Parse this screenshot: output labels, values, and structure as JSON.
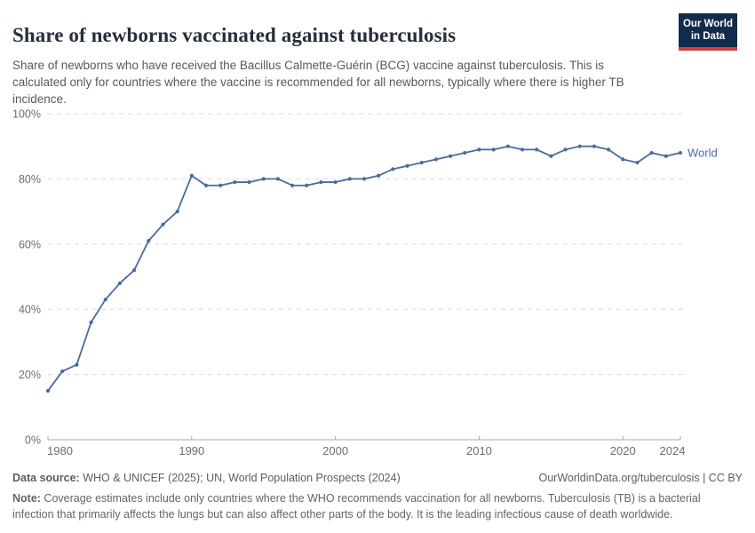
{
  "header": {
    "title": "Share of newborns vaccinated against tuberculosis",
    "subtitle": "Share of newborns who have received the Bacillus Calmette-Guérin (BCG) vaccine against tuberculosis. This is calculated only for countries where the vaccine is recommended for all newborns, typically where there is higher TB incidence."
  },
  "logo": {
    "line1": "Our World",
    "line2": "in Data"
  },
  "footer": {
    "source_label": "Data source:",
    "source_text": " WHO & UNICEF (2025); UN, World Population Prospects (2024)",
    "link_text": "OurWorldinData.org/tuberculosis | CC BY",
    "note_label": "Note:",
    "note_text": " Coverage estimates include only countries where the WHO recommends vaccination for all newborns. Tuberculosis (TB) is a bacterial infection that primarily affects the lungs but can also affect other parts of the body. It is the leading infectious cause of death worldwide."
  },
  "colors": {
    "line": "#4c6a9c",
    "grid": "#dcdcdc",
    "axis": "#a9a9a9",
    "tick_label": "#6e6e6e",
    "logo_bg": "#132b4d",
    "logo_stripe": "#d13c3c"
  },
  "chart_data": {
    "type": "line",
    "title": "Share of newborns vaccinated against tuberculosis",
    "xlabel": "",
    "ylabel": "",
    "xlim": [
      1980,
      2024
    ],
    "ylim": [
      0,
      100
    ],
    "grid": "horizontal-dashed",
    "legend_position": "end-of-line-label",
    "xticks": [
      1980,
      1990,
      2000,
      2010,
      2020,
      2024
    ],
    "yticks": [
      0,
      20,
      40,
      60,
      80,
      100
    ],
    "ytick_labels": [
      "0%",
      "20%",
      "40%",
      "60%",
      "80%",
      "100%"
    ],
    "series": [
      {
        "name": "World",
        "color": "#4c6a9c",
        "x": [
          1980,
          1981,
          1982,
          1983,
          1984,
          1985,
          1986,
          1987,
          1988,
          1989,
          1990,
          1991,
          1992,
          1993,
          1994,
          1995,
          1996,
          1997,
          1998,
          1999,
          2000,
          2001,
          2002,
          2003,
          2004,
          2005,
          2006,
          2007,
          2008,
          2009,
          2010,
          2011,
          2012,
          2013,
          2014,
          2015,
          2016,
          2017,
          2018,
          2019,
          2020,
          2021,
          2022,
          2023,
          2024
        ],
        "values": [
          15,
          21,
          23,
          36,
          43,
          48,
          52,
          61,
          66,
          70,
          81,
          78,
          78,
          79,
          79,
          80,
          80,
          78,
          78,
          79,
          79,
          80,
          80,
          81,
          83,
          84,
          85,
          86,
          87,
          88,
          89,
          89,
          90,
          89,
          89,
          87,
          89,
          90,
          90,
          89,
          86,
          85,
          88,
          87,
          88
        ]
      }
    ]
  }
}
